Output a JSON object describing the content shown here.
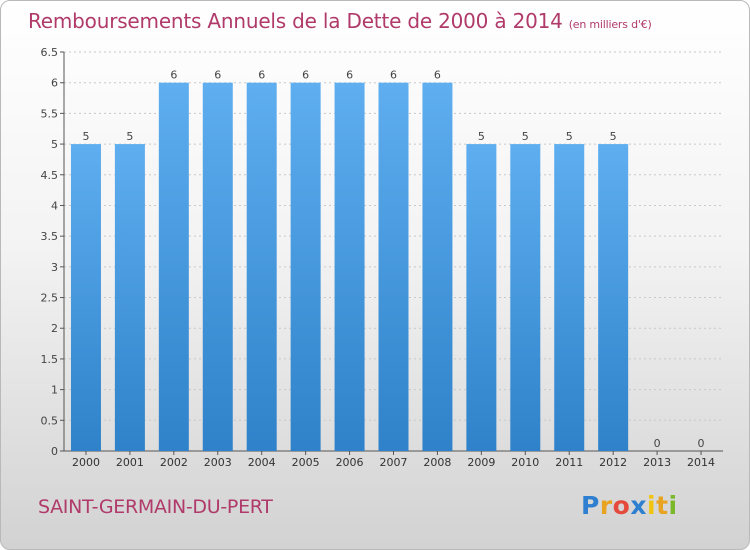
{
  "title": "Remboursements Annuels de la Dette de 2000 à 2014",
  "unit_label": "(en milliers d'€)",
  "city": "SAINT-GERMAIN-DU-PERT",
  "logo": {
    "text": "Proxiti",
    "letter_colors": [
      "#2f7fd0",
      "#e8a421",
      "#e54b3c",
      "#2f7fd0",
      "#f1c40f",
      "#e8a421",
      "#7ab82a"
    ]
  },
  "colors": {
    "title": "#b03a6a",
    "bar_light": "#5eaef0",
    "bar_dark": "#2f82c9",
    "grid": "#c8c8c8"
  },
  "chart_data": {
    "type": "bar",
    "categories": [
      "2000",
      "2001",
      "2002",
      "2003",
      "2004",
      "2005",
      "2006",
      "2007",
      "2008",
      "2009",
      "2010",
      "2011",
      "2012",
      "2013",
      "2014"
    ],
    "values": [
      5,
      5,
      6,
      6,
      6,
      6,
      6,
      6,
      6,
      5,
      5,
      5,
      5,
      0,
      0
    ],
    "ylim": [
      0,
      6.5
    ],
    "yticks": [
      "0",
      "0.5",
      "1",
      "1.5",
      "2",
      "2.5",
      "3",
      "3.5",
      "4",
      "4.5",
      "5",
      "5.5",
      "6",
      "6.5"
    ],
    "data_labels": [
      "5",
      "5",
      "6",
      "6",
      "6",
      "6",
      "6",
      "6",
      "6",
      "5",
      "5",
      "5",
      "5",
      "0",
      "0"
    ],
    "grid": true
  }
}
